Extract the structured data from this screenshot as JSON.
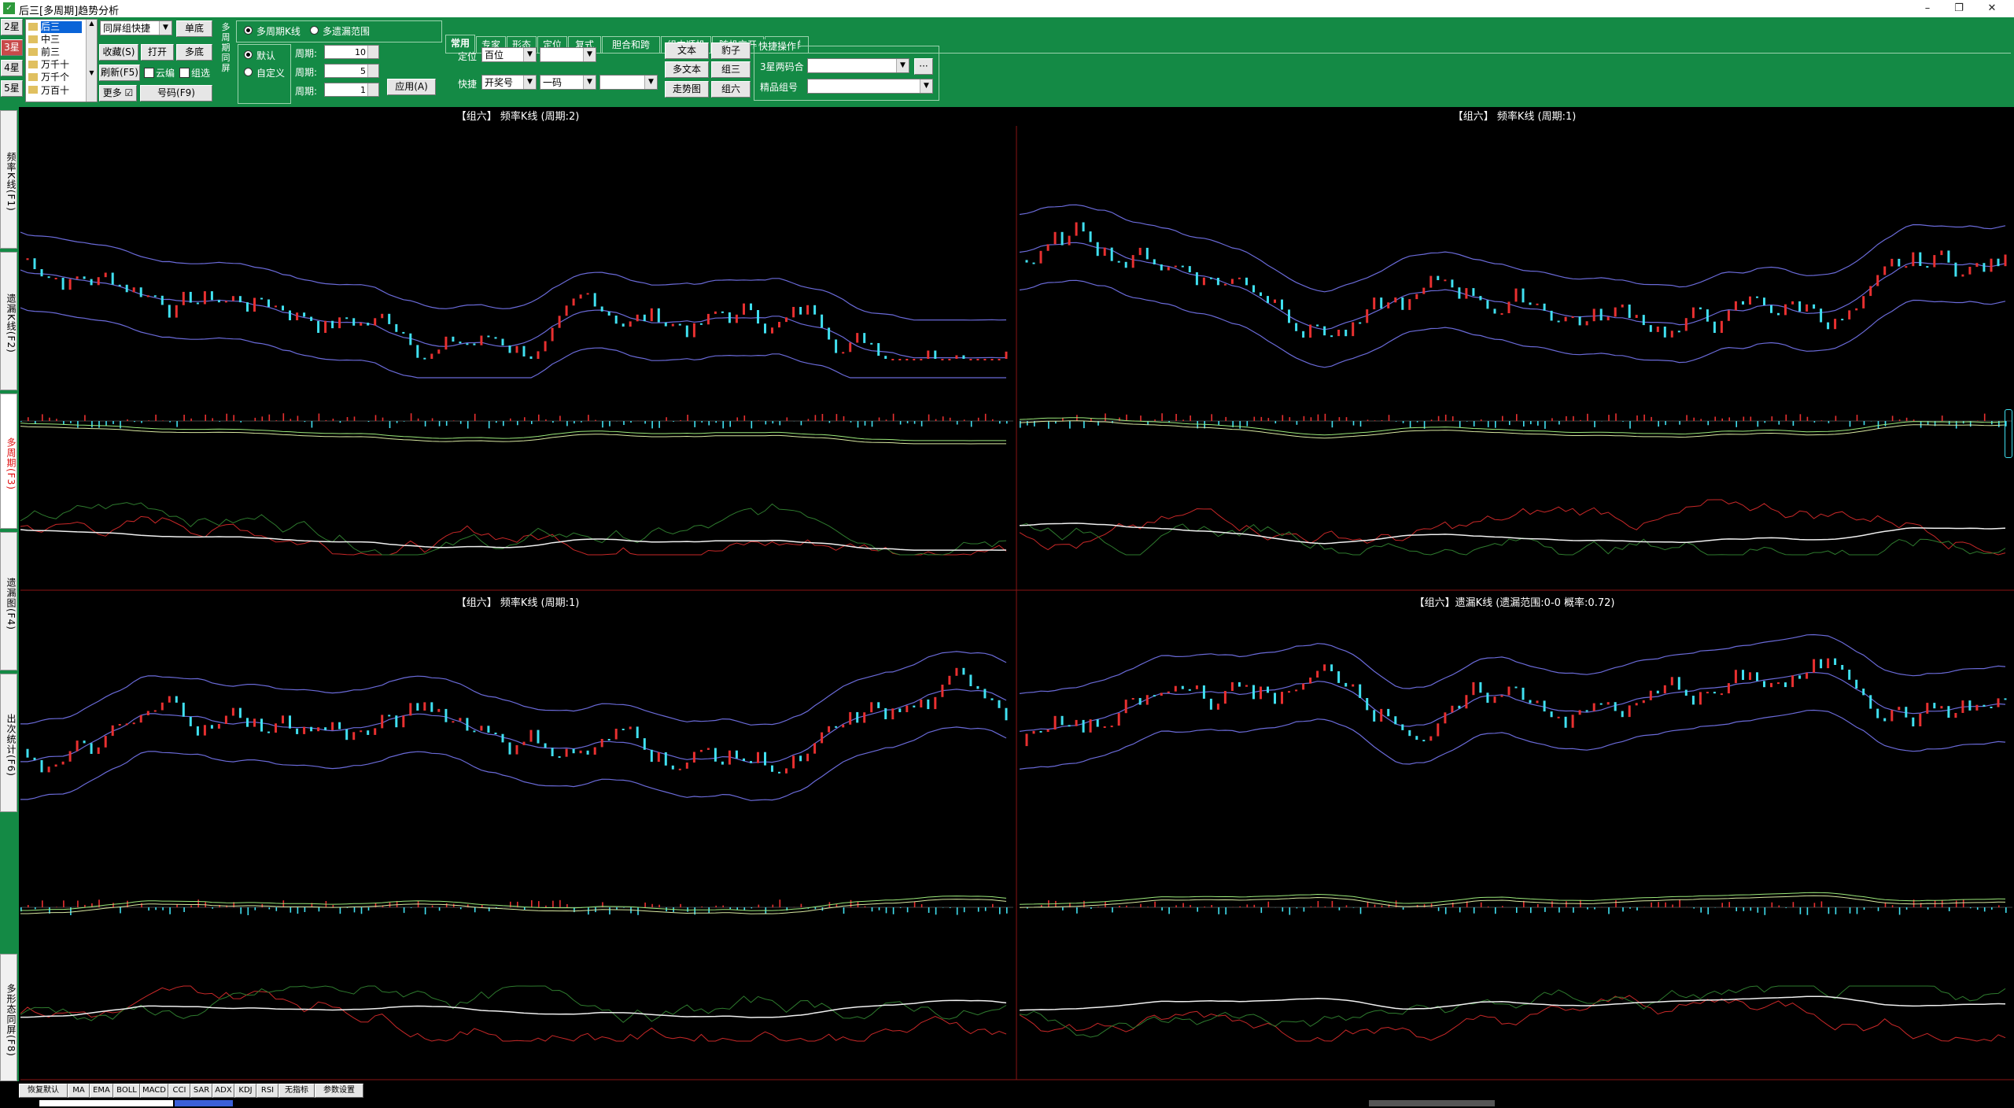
{
  "window": {
    "title": "后三[多周期]趋势分析",
    "minimize": "–",
    "restore": "❐",
    "close": "✕"
  },
  "star_buttons": [
    "2星",
    "3星",
    "4星",
    "5星"
  ],
  "position_list": [
    "后三",
    "中三",
    "前三",
    "万千十",
    "万千个",
    "万百十"
  ],
  "combo_group": "同屏组快捷",
  "buttons": {
    "single": "单底",
    "favorite": "收藏(S)",
    "open": "打开",
    "multi": "多底",
    "refresh": "刷新(F5)",
    "more": "更多",
    "number": "号码(F9)"
  },
  "checks": {
    "sync": "云编",
    "compose": "组选"
  },
  "multi_cycle": {
    "side_label": "多周期同屏",
    "radio1": "多周期K线",
    "radio2": "多遗漏范围",
    "default": "默认",
    "custom": "自定义",
    "cycles": [
      {
        "label": "周期:",
        "value": "10"
      },
      {
        "label": "周期:",
        "value": "5"
      },
      {
        "label": "周期:",
        "value": "1"
      }
    ],
    "apply": "应用(A)"
  },
  "tabs": [
    "常用",
    "专家",
    "形态",
    "定位",
    "复式",
    "胆合和跨",
    "组内顺机",
    "随机交开",
    "分组群"
  ],
  "common": {
    "pos_label": "定位",
    "pos_value": "百位",
    "quick_label": "快捷",
    "quick_value": "开奖号",
    "code_value": "一码",
    "btn_text": "文本",
    "btn_multitext": "多文本",
    "btn_trend": "走势图",
    "btn_leopard": "豹子",
    "btn_group3": "组三",
    "btn_group6": "组六",
    "fast_ops": "快捷操作",
    "label_3star": "3星两码合",
    "label_fine": "精品组号",
    "dots": "···"
  },
  "side_tabs": [
    {
      "label": "频率K线(F1)",
      "active": false
    },
    {
      "label": "遗漏K线(F2)",
      "active": false
    },
    {
      "label": "多周期(F3)",
      "active": true
    },
    {
      "label": "遗漏图(F4)",
      "active": false
    },
    {
      "label": "出次统计(F6)",
      "active": false
    },
    {
      "label": "多形态同屏(F8)",
      "active": false
    }
  ],
  "charts": [
    {
      "title": "【组六】 频率K线 (周期:2)"
    },
    {
      "title": "【组六】 频率K线 (周期:1)"
    },
    {
      "title": "【组六】 频率K线 (周期:1)"
    },
    {
      "title": "【组六】遗漏K线 (遗漏范围:0-0 概率:0.72)"
    }
  ],
  "indicator_buttons": [
    "恢复默认",
    "MA",
    "EMA",
    "BOLL",
    "MACD",
    "CCI",
    "SAR",
    "ADX",
    "KDJ",
    "RSI",
    "无指标",
    "参数设置"
  ],
  "colors": {
    "toolbar": "#148a45",
    "up": "#e83030",
    "down": "#40e0f0",
    "band": "#6a6ad8",
    "grid": "#8a1414"
  }
}
